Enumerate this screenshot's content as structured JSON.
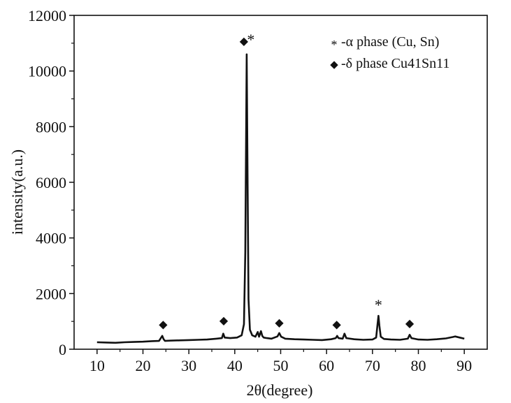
{
  "chart_data": {
    "type": "line",
    "title": "",
    "xlabel": "2θ(degree)",
    "ylabel": "intensity(a.u.)",
    "xlim": [
      5,
      95
    ],
    "ylim": [
      0,
      12000
    ],
    "xticks": [
      10,
      20,
      30,
      40,
      50,
      60,
      70,
      80,
      90
    ],
    "yticks": [
      0,
      2000,
      4000,
      6000,
      8000,
      10000,
      12000
    ],
    "grid": false,
    "legend_position": "top-right",
    "legend": [
      {
        "symbol": "*",
        "label": "-α phase (Cu, Sn)"
      },
      {
        "symbol": "◆",
        "label": "-δ phase Cu41Sn11"
      }
    ],
    "series": [
      {
        "x": [
          10,
          12,
          14,
          16,
          18,
          20,
          22,
          23.5,
          24.2,
          24.5,
          24.8,
          26,
          28,
          30,
          32,
          34,
          36,
          37.2,
          37.5,
          37.8,
          39,
          40.5,
          41.5,
          42.0,
          42.3,
          42.6,
          42.8,
          43.0,
          43.3,
          43.8,
          44.5,
          45.0,
          45.3,
          45.7,
          46.0,
          46.3,
          47,
          48,
          49.3,
          49.7,
          50.1,
          51,
          53,
          55,
          57,
          59,
          61,
          62.0,
          62.3,
          62.6,
          63.5,
          63.9,
          64.3,
          66,
          68,
          70,
          70.8,
          71.1,
          71.3,
          71.5,
          71.8,
          72.5,
          74,
          76,
          77.7,
          78.1,
          78.5,
          80,
          82,
          84,
          86,
          87.5,
          88,
          89,
          90
        ],
        "y": [
          250,
          240,
          230,
          250,
          260,
          270,
          290,
          300,
          480,
          360,
          300,
          310,
          320,
          330,
          340,
          350,
          380,
          400,
          560,
          420,
          400,
          420,
          500,
          900,
          3500,
          10600,
          6000,
          1800,
          700,
          500,
          450,
          620,
          450,
          650,
          480,
          420,
          400,
          380,
          460,
          580,
          450,
          380,
          360,
          350,
          340,
          330,
          360,
          400,
          480,
          400,
          380,
          560,
          400,
          360,
          340,
          350,
          420,
          900,
          1200,
          850,
          450,
          370,
          350,
          340,
          380,
          520,
          400,
          350,
          340,
          360,
          390,
          440,
          460,
          420,
          380
        ]
      }
    ],
    "annotations": [
      {
        "x": 24.4,
        "y": 760,
        "text": "◆"
      },
      {
        "x": 37.6,
        "y": 900,
        "text": "◆"
      },
      {
        "x": 49.7,
        "y": 830,
        "text": "◆"
      },
      {
        "x": 62.2,
        "y": 760,
        "text": "◆"
      },
      {
        "x": 78.1,
        "y": 800,
        "text": "◆"
      },
      {
        "x": 71.3,
        "y": 1400,
        "text": "*"
      },
      {
        "x": 42.0,
        "y": 10950,
        "text": "◆"
      },
      {
        "x": 43.5,
        "y": 10950,
        "text": "*"
      }
    ]
  }
}
